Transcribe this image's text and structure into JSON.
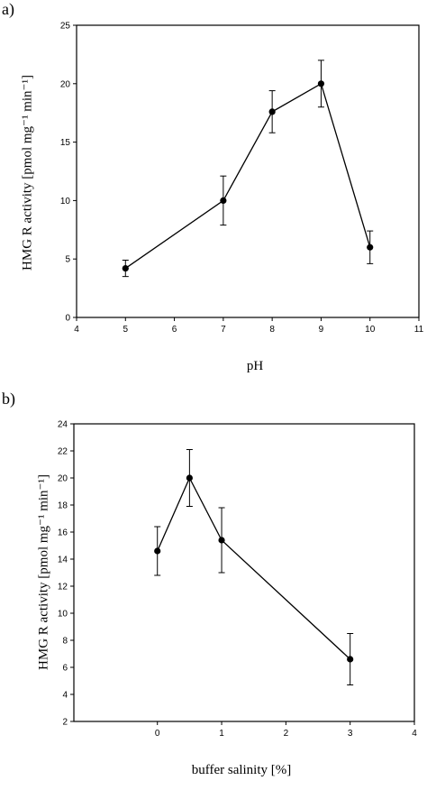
{
  "chart_data": [
    {
      "panel_label": "a)",
      "type": "line",
      "xlabel": "pH",
      "ylabel": "HMG R activity [pmol mg⁻¹ min⁻¹]",
      "xlim": [
        4,
        11
      ],
      "ylim": [
        0,
        25
      ],
      "xticks": [
        4,
        5,
        6,
        7,
        8,
        9,
        10,
        11
      ],
      "yticks": [
        0,
        5,
        10,
        15,
        20,
        25
      ],
      "grid": false,
      "series": [
        {
          "x": [
            5,
            7,
            8,
            9,
            10
          ],
          "y": [
            4.2,
            10.0,
            17.6,
            20.0,
            6.0
          ],
          "yerr": [
            0.7,
            2.1,
            1.8,
            2.0,
            1.4
          ]
        }
      ]
    },
    {
      "panel_label": "b)",
      "type": "line",
      "xlabel": "buffer salinity [%]",
      "ylabel": "HMG R activity [pmol mg⁻¹ min⁻¹]",
      "xlim": [
        -1.3,
        4
      ],
      "ylim": [
        2,
        24
      ],
      "xticks": [
        0,
        1,
        2,
        3,
        4
      ],
      "yticks": [
        2,
        4,
        6,
        8,
        10,
        12,
        14,
        16,
        18,
        20,
        22,
        24
      ],
      "grid": false,
      "series": [
        {
          "x": [
            0,
            0.5,
            1,
            3
          ],
          "y": [
            14.6,
            20.0,
            15.4,
            6.6
          ],
          "yerr": [
            1.8,
            2.1,
            2.4,
            1.9
          ]
        }
      ]
    }
  ]
}
